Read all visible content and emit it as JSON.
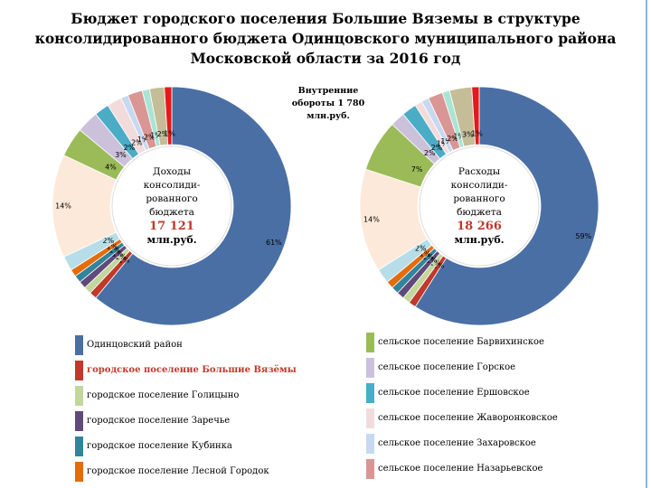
{
  "chart_data": {
    "type": "pie",
    "donut": true,
    "title": "Бюджет городского поселения Большие Вяземы в структуре консолидированного бюджета Одинцовского муниципального района Московской области за 2016 год",
    "annotation": "Внутренние обороты 1 780 млн.руб.",
    "categories": [
      "Одинцовский район",
      "городское поселение Большие Вязёмы",
      "городское поселение Голицыно",
      "городское поселение Заречье",
      "городское поселение Кубинка",
      "городское поселение Лесной Городок",
      null,
      null,
      "сельское поселение Барвихинское",
      "сельское поселение Горское",
      "сельское поселение Ершовское",
      "сельское поселение Жаворонковское",
      "сельское поселение Захаровское",
      "сельское поселение Назарьевское",
      null,
      null,
      null
    ],
    "colors": [
      "#4a6fa5",
      "#c0392b",
      "#c3d69b",
      "#604a7b",
      "#31849b",
      "#e46c0a",
      "#b7dee8",
      "#fde9d9",
      "#9bbb59",
      "#ccc1da",
      "#4bacc6",
      "#f2dcdb",
      "#c6d9f1",
      "#d99694",
      "#a9e4d4",
      "#c4bd97",
      "#e31a1c"
    ],
    "legend_highlight": 1,
    "series": [
      {
        "name": "Доходы консолиди-рованного бюджета",
        "total": "17 121",
        "unit": "млн.руб.",
        "values": [
          61,
          1,
          1,
          1,
          1,
          1,
          2,
          14,
          4,
          3,
          2,
          2,
          1,
          2,
          1,
          2,
          1
        ],
        "value_labels": [
          "61%",
          "1%",
          "1%",
          "1%",
          "1%",
          "1%",
          "2%",
          "14%",
          "4%",
          "3%",
          "2%",
          "2%",
          "1%",
          "2%",
          "1%",
          "2%",
          "1%"
        ]
      },
      {
        "name": "Расходы консолиди-рованного бюджета",
        "total": "18 266",
        "unit": "млн.руб.",
        "values": [
          59,
          1,
          1,
          1,
          1,
          1,
          2,
          14,
          7,
          2,
          2,
          1,
          1,
          2,
          1,
          3,
          1
        ],
        "value_labels": [
          "59%",
          "1%",
          "1%",
          "1%",
          "1%",
          "1%",
          "2%",
          "14%",
          "7%",
          "2%",
          "2%",
          "1%",
          "1%",
          "2%",
          "1%",
          "3%",
          "1%"
        ]
      }
    ]
  }
}
